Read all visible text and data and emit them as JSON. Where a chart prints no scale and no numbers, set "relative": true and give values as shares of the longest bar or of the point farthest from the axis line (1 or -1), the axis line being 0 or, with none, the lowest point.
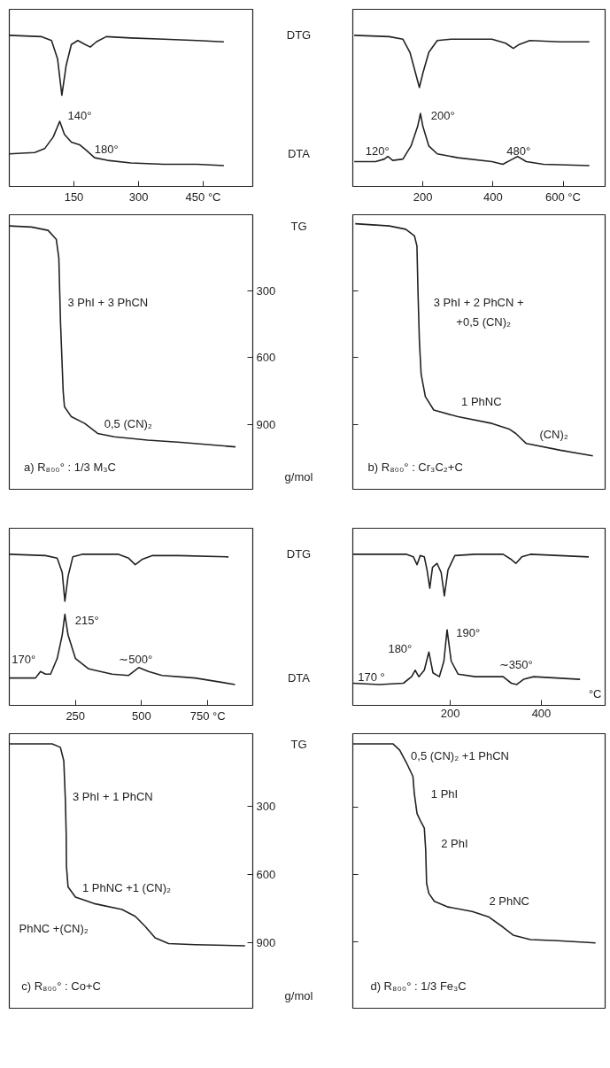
{
  "chart_data": [
    {
      "type": "line",
      "relative": true,
      "xlim": [
        0,
        565
      ],
      "xticks": [
        150,
        300,
        {
          "value": 450,
          "label": "450 °C"
        }
      ],
      "tick_labels": "x",
      "series": [
        {
          "name": "DTG",
          "color": "#222222",
          "x": [
            0,
            75,
            98,
            112,
            122,
            132,
            144,
            159,
            176,
            188,
            202,
            225,
            282,
            359,
            436,
            498
          ],
          "values": [
            1.0,
            0.99,
            0.96,
            0.82,
            0.54,
            0.77,
            0.93,
            0.96,
            0.93,
            0.91,
            0.95,
            0.99,
            0.98,
            0.97,
            0.96,
            0.95
          ]
        },
        {
          "name": "DTA",
          "color": "#222222",
          "x": [
            0,
            59,
            82,
            102,
            117,
            128,
            144,
            163,
            178,
            198,
            228,
            282,
            359,
            436,
            498
          ],
          "values": [
            0.09,
            0.1,
            0.13,
            0.22,
            0.34,
            0.24,
            0.18,
            0.16,
            0.12,
            0.06,
            0.04,
            0.02,
            0.01,
            0.01,
            0.0
          ]
        }
      ],
      "annotations": [
        "140°",
        "180°"
      ]
    },
    {
      "type": "line",
      "xlim": [
        0,
        565
      ],
      "ylim": [
        1190,
        -40
      ],
      "yticks": [
        300,
        600,
        900
      ],
      "tick_labels": "y",
      "ylabel": "g/mol",
      "series": [
        {
          "name": "TG",
          "color": "#222222",
          "x": [
            0,
            52,
            90,
            109,
            115,
            117,
            119,
            122,
            125,
            128,
            144,
            175,
            205,
            244,
            321,
            398,
            525
          ],
          "values": [
            10,
            15,
            30,
            70,
            155,
            305,
            450,
            600,
            750,
            820,
            865,
            895,
            940,
            955,
            970,
            980,
            1000
          ]
        }
      ],
      "annotations": [
        "3 PhI + 3 PhCN",
        "0,5 (CN)₂",
        "a) R₈₀₀° : 1/3 M₃C"
      ]
    },
    {
      "type": "line",
      "relative": true,
      "xlim": [
        0,
        720
      ],
      "xticks": [
        200,
        400,
        {
          "value": 600,
          "label": "600 °C"
        }
      ],
      "tick_labels": "x",
      "series": [
        {
          "color": "#222222",
          "x": [
            4,
            104,
            143,
            163,
            182,
            190,
            200,
            217,
            241,
            280,
            397,
            436,
            458,
            475,
            505,
            592,
            675
          ],
          "values": [
            1.0,
            0.99,
            0.97,
            0.87,
            0.68,
            0.6,
            0.71,
            0.87,
            0.96,
            0.97,
            0.97,
            0.94,
            0.9,
            0.93,
            0.96,
            0.95,
            0.95
          ]
        },
        {
          "color": "#222222",
          "x": [
            4,
            65,
            90,
            100,
            114,
            143,
            166,
            185,
            193,
            200,
            217,
            241,
            300,
            397,
            428,
            456,
            470,
            495,
            544,
            675
          ],
          "values": [
            0.03,
            0.03,
            0.05,
            0.07,
            0.04,
            0.05,
            0.15,
            0.3,
            0.4,
            0.3,
            0.15,
            0.09,
            0.06,
            0.03,
            0.01,
            0.05,
            0.07,
            0.03,
            0.01,
            0.0
          ]
        }
      ],
      "annotations": [
        "120°",
        "200°",
        "480°"
      ]
    },
    {
      "type": "line",
      "xlim": [
        0,
        720
      ],
      "ylim": [
        1190,
        -40
      ],
      "yticks": [
        300,
        600,
        900
      ],
      "tick_labels": false,
      "series": [
        {
          "color": "#222222",
          "x": [
            7,
            104,
            151,
            176,
            183,
            186,
            190,
            195,
            207,
            231,
            300,
            397,
            446,
            465,
            495,
            592,
            685
          ],
          "values": [
            0,
            10,
            25,
            55,
            100,
            305,
            525,
            675,
            775,
            835,
            865,
            895,
            920,
            940,
            985,
            1015,
            1040
          ]
        }
      ],
      "annotations": [
        "3 PhI + 2 PhCN +",
        "+0,5 (CN)₂",
        "1 PhNC",
        "(CN)₂",
        "b) R₈₀₀° : Cr₃C₂+C"
      ]
    },
    {
      "type": "line",
      "relative": true,
      "xlim": [
        0,
        920
      ],
      "xticks": [
        250,
        500,
        {
          "value": 750,
          "label": "750 °C"
        }
      ],
      "tick_labels": "x",
      "series": [
        {
          "name": "DTG",
          "color": "#222222",
          "x": [
            0,
            137,
            181,
            200,
            210,
            222,
            240,
            275,
            413,
            451,
            476,
            501,
            539,
            639,
            828
          ],
          "values": [
            1.0,
            0.99,
            0.97,
            0.86,
            0.64,
            0.83,
            0.98,
            1.0,
            1.0,
            0.97,
            0.92,
            0.96,
            0.99,
            0.99,
            0.98
          ]
        },
        {
          "name": "DTA",
          "color": "#222222",
          "x": [
            0,
            99,
            118,
            137,
            156,
            181,
            200,
            210,
            222,
            250,
            300,
            388,
            451,
            489,
            526,
            577,
            702,
            853
          ],
          "values": [
            0.05,
            0.05,
            0.1,
            0.08,
            0.08,
            0.2,
            0.38,
            0.54,
            0.38,
            0.2,
            0.12,
            0.08,
            0.07,
            0.13,
            0.1,
            0.07,
            0.05,
            0.0
          ]
        }
      ],
      "annotations": [
        "170°",
        "215°",
        "∼500°"
      ]
    },
    {
      "type": "line",
      "xlim": [
        0,
        920
      ],
      "ylim": [
        1190,
        -20
      ],
      "yticks": [
        300,
        600,
        900
      ],
      "tick_labels": "y",
      "ylabel": "g/mol",
      "series": [
        {
          "name": "TG",
          "color": "#222222",
          "x": [
            0,
            162,
            193,
            206,
            212,
            215,
            216,
            222,
            250,
            325,
            426,
            476,
            514,
            551,
            602,
            702,
            891
          ],
          "values": [
            25,
            25,
            40,
            100,
            275,
            420,
            565,
            655,
            700,
            730,
            755,
            785,
            830,
            880,
            905,
            910,
            915
          ]
        }
      ],
      "annotations": [
        "3 PhI + 1 PhCN",
        "1 PhNC +1 (CN)₂",
        "PhNC +(CN)₂",
        "c) R₈₀₀° : Co+C"
      ]
    },
    {
      "type": "line",
      "relative": true,
      "xlim": [
        -14,
        540
      ],
      "xticks": [
        200,
        400
      ],
      "xlabel": "°C",
      "tick_labels": "x",
      "series": [
        {
          "color": "#222222",
          "x": [
            -14,
            104,
            119,
            127,
            134,
            143,
            149,
            155,
            161,
            171,
            180,
            187,
            195,
            210,
            255,
            316,
            334,
            344,
            357,
            376,
            504
          ],
          "values": [
            1.0,
            1.0,
            0.98,
            0.92,
            0.99,
            0.98,
            0.88,
            0.74,
            0.9,
            0.93,
            0.86,
            0.68,
            0.88,
            0.99,
            1.0,
            1.0,
            0.96,
            0.93,
            0.98,
            1.0,
            0.98
          ]
        },
        {
          "color": "#222222",
          "x": [
            -14,
            44,
            97,
            115,
            123,
            131,
            143,
            153,
            162,
            176,
            186,
            193,
            202,
            217,
            255,
            316,
            334,
            346,
            361,
            383,
            485
          ],
          "values": [
            0.01,
            0.0,
            0.01,
            0.06,
            0.11,
            0.06,
            0.11,
            0.25,
            0.09,
            0.06,
            0.18,
            0.42,
            0.18,
            0.08,
            0.06,
            0.06,
            0.01,
            0.0,
            0.04,
            0.06,
            0.04
          ]
        }
      ],
      "annotations": [
        "170 °",
        "180°",
        "190°",
        "∼350°"
      ]
    },
    {
      "type": "line",
      "xlim": [
        -14,
        540
      ],
      "ylim": [
        1195,
        -25
      ],
      "yticks": [
        300,
        600,
        900
      ],
      "tick_labels": false,
      "series": [
        {
          "color": "#222222",
          "x": [
            -14,
            74,
            89,
            104,
            118,
            121,
            127,
            134,
            143,
            146,
            148,
            153,
            165,
            195,
            248,
            285,
            316,
            338,
            376,
            436,
            519
          ],
          "values": [
            20,
            20,
            48,
            105,
            165,
            240,
            330,
            360,
            395,
            490,
            640,
            685,
            720,
            745,
            765,
            790,
            835,
            870,
            890,
            895,
            905
          ]
        }
      ],
      "annotations": [
        "0,5 (CN)₂ +1 PhCN",
        "1 PhI",
        "2 PhI",
        "2 PhNC",
        "d) R₈₀₀° : 1/3 Fe₃C"
      ]
    }
  ]
}
